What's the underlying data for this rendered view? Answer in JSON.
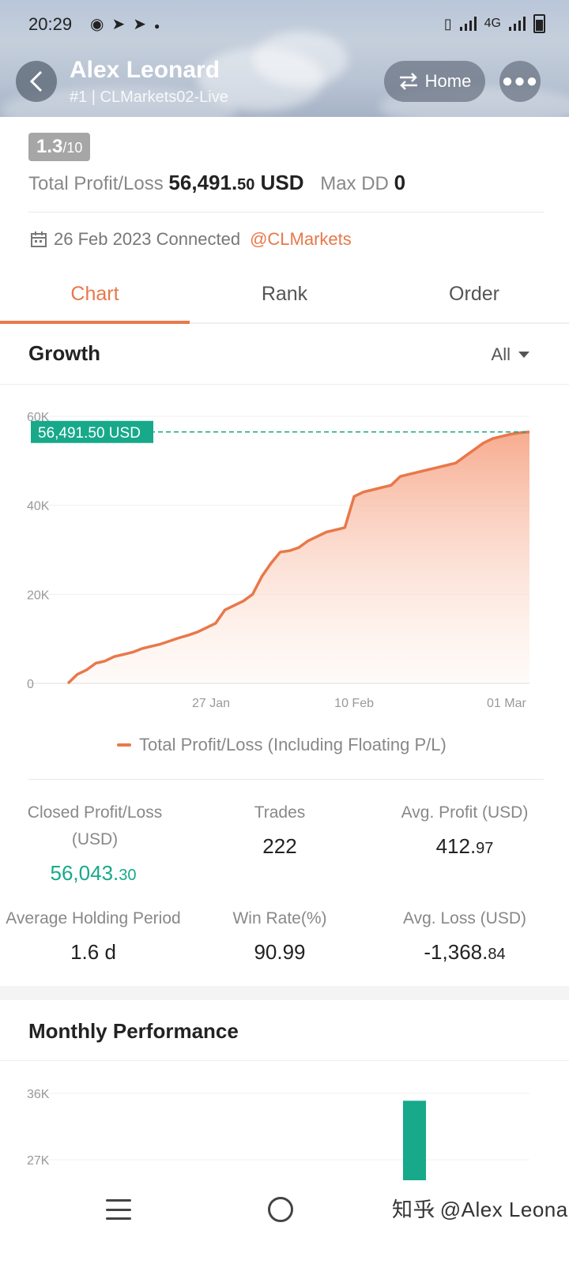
{
  "status_bar": {
    "time": "20:29",
    "left_icons": [
      "messenger-icon",
      "telegram-icon",
      "telegram-icon",
      "dot-icon"
    ],
    "network": "4G"
  },
  "header": {
    "name": "Alex Leonard",
    "account": "#1 | CLMarkets02-Live",
    "home_label": "Home",
    "back_icon": "chevron-left-icon",
    "more_icon": "more-dots-icon"
  },
  "summary": {
    "score": "1.3",
    "score_max": "/10",
    "total_pl_label": "Total Profit/Loss",
    "total_pl_main": "56,491.",
    "total_pl_decimal": "50",
    "total_pl_currency": " USD",
    "max_dd_label": "Max DD",
    "max_dd_value": "0",
    "connected_text": "26 Feb 2023 Connected",
    "broker": "@CLMarkets"
  },
  "tabs": [
    {
      "label": "Chart",
      "active": true
    },
    {
      "label": "Rank",
      "active": false
    },
    {
      "label": "Order",
      "active": false
    }
  ],
  "growth": {
    "title": "Growth",
    "range_label": "All",
    "current_label": "56,491.50 USD",
    "legend": "Total Profit/Loss (Including Floating P/L)"
  },
  "chart_data": [
    {
      "type": "area",
      "title": "Growth",
      "ylim": [
        0,
        60000
      ],
      "yticks": [
        0,
        20000,
        40000,
        60000
      ],
      "ytick_labels": [
        "0",
        "20K",
        "40K",
        "60K"
      ],
      "xtick_labels": [
        "27 Jan",
        "10 Feb",
        "01 Mar"
      ],
      "xtick_positions": [
        0.31,
        0.62,
        0.95
      ],
      "current_value": 56491.5,
      "series": [
        {
          "name": "Total Profit/Loss (Including Floating P/L)",
          "color": "#e8784a",
          "x": [
            0,
            0.02,
            0.04,
            0.06,
            0.08,
            0.1,
            0.12,
            0.14,
            0.16,
            0.18,
            0.2,
            0.22,
            0.24,
            0.26,
            0.28,
            0.3,
            0.32,
            0.34,
            0.36,
            0.38,
            0.4,
            0.42,
            0.44,
            0.46,
            0.48,
            0.5,
            0.52,
            0.54,
            0.56,
            0.58,
            0.6,
            0.62,
            0.64,
            0.66,
            0.68,
            0.7,
            0.72,
            0.74,
            0.76,
            0.78,
            0.8,
            0.82,
            0.84,
            0.86,
            0.88,
            0.9,
            0.92,
            0.94,
            0.96,
            0.98,
            1.0
          ],
          "values": [
            0,
            2000,
            3000,
            4500,
            5000,
            6000,
            6500,
            7000,
            7800,
            8300,
            8800,
            9500,
            10200,
            10800,
            11500,
            12500,
            13500,
            16500,
            17500,
            18500,
            20000,
            24000,
            27000,
            29500,
            29800,
            30500,
            32000,
            33000,
            34000,
            34500,
            35000,
            42000,
            43000,
            43500,
            44000,
            44500,
            46500,
            47000,
            47500,
            48000,
            48500,
            49000,
            49500,
            51000,
            52500,
            54000,
            55000,
            55500,
            56000,
            56300,
            56491.5
          ]
        }
      ]
    },
    {
      "type": "bar",
      "title": "Monthly Performance",
      "ytick_labels": [
        "36K",
        "27K"
      ],
      "yticks": [
        36000,
        27000
      ],
      "ylim_visible": [
        25000,
        38000
      ],
      "bars": [
        {
          "x_fraction": 0.8,
          "value": 35000,
          "color": "#17a98a"
        }
      ]
    }
  ],
  "stats": {
    "closed_pl_label": "Closed Profit/Loss (USD)",
    "closed_pl_main": "56,043.",
    "closed_pl_decimal": "30",
    "trades_label": "Trades",
    "trades_value": "222",
    "avg_profit_label": "Avg. Profit (USD)",
    "avg_profit_main": "412.",
    "avg_profit_decimal": "97",
    "holding_label": "Average Holding Period",
    "holding_value": "1.6 d",
    "win_rate_label": "Win Rate(%)",
    "win_rate_value": "90.99",
    "avg_loss_label": "Avg. Loss (USD)",
    "avg_loss_main": "-1,368.",
    "avg_loss_decimal": "84"
  },
  "monthly": {
    "title": "Monthly Performance"
  },
  "watermark": "知乎 @Alex Leonard",
  "colors": {
    "accent": "#e8784a",
    "green": "#17a98a"
  }
}
